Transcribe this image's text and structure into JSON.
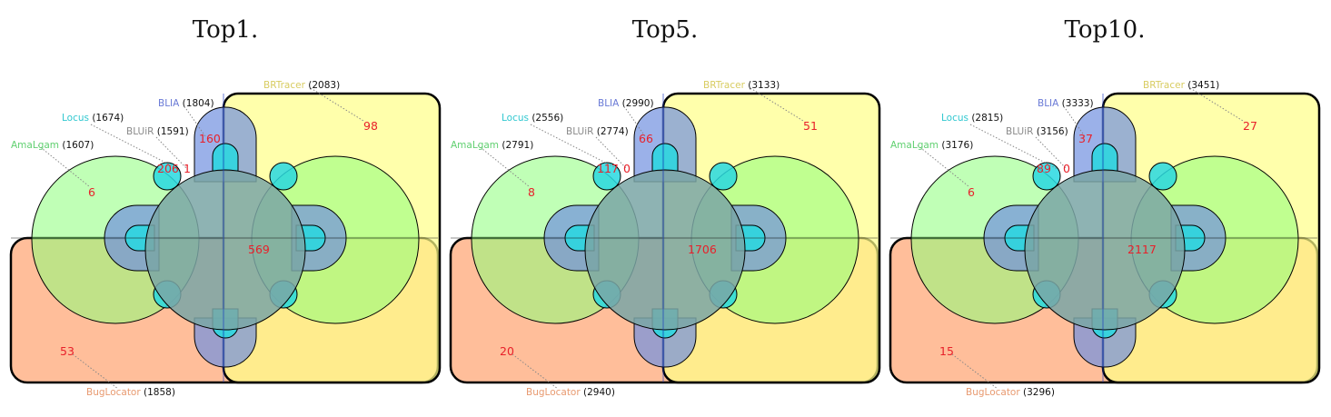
{
  "colors": {
    "BugLocator": "#ffa878",
    "BRTracer": "#ffff88",
    "AmaLgam": "#8cff7a",
    "BLIA": "#7090e0",
    "Locus": "#28d8e0",
    "BLUiR": "#909090",
    "count": "#e8202a"
  },
  "panels": [
    {
      "title": "Top1.",
      "sets": {
        "BRTracer": "(2083)",
        "BLIA": "(1804)",
        "Locus": "(1674)",
        "BLUiR": "(1591)",
        "AmaLgam": "(1607)",
        "BugLocator": "(1858)"
      },
      "counts": {
        "brtracer_only": "98",
        "blia_only": "160",
        "locus_only": "206",
        "bluir_only": "1",
        "amalgam_only": "6",
        "bug_only": "53",
        "all": "569"
      }
    },
    {
      "title": "Top5.",
      "sets": {
        "BRTracer": "(3133)",
        "BLIA": "(2990)",
        "Locus": "(2556)",
        "BLUiR": "(2774)",
        "AmaLgam": "(2791)",
        "BugLocator": "(2940)"
      },
      "counts": {
        "brtracer_only": "51",
        "blia_only": "66",
        "locus_only": "117",
        "bluir_only": "0",
        "amalgam_only": "8",
        "bug_only": "20",
        "all": "1706"
      }
    },
    {
      "title": "Top10.",
      "sets": {
        "BRTracer": "(3451)",
        "BLIA": "(3333)",
        "Locus": "(2815)",
        "BLUiR": "(3156)",
        "AmaLgam": "(3176)",
        "BugLocator": "(3296)"
      },
      "counts": {
        "brtracer_only": "27",
        "blia_only": "37",
        "locus_only": "89",
        "bluir_only": "0",
        "amalgam_only": "6",
        "bug_only": "15",
        "all": "2117"
      }
    }
  ]
}
